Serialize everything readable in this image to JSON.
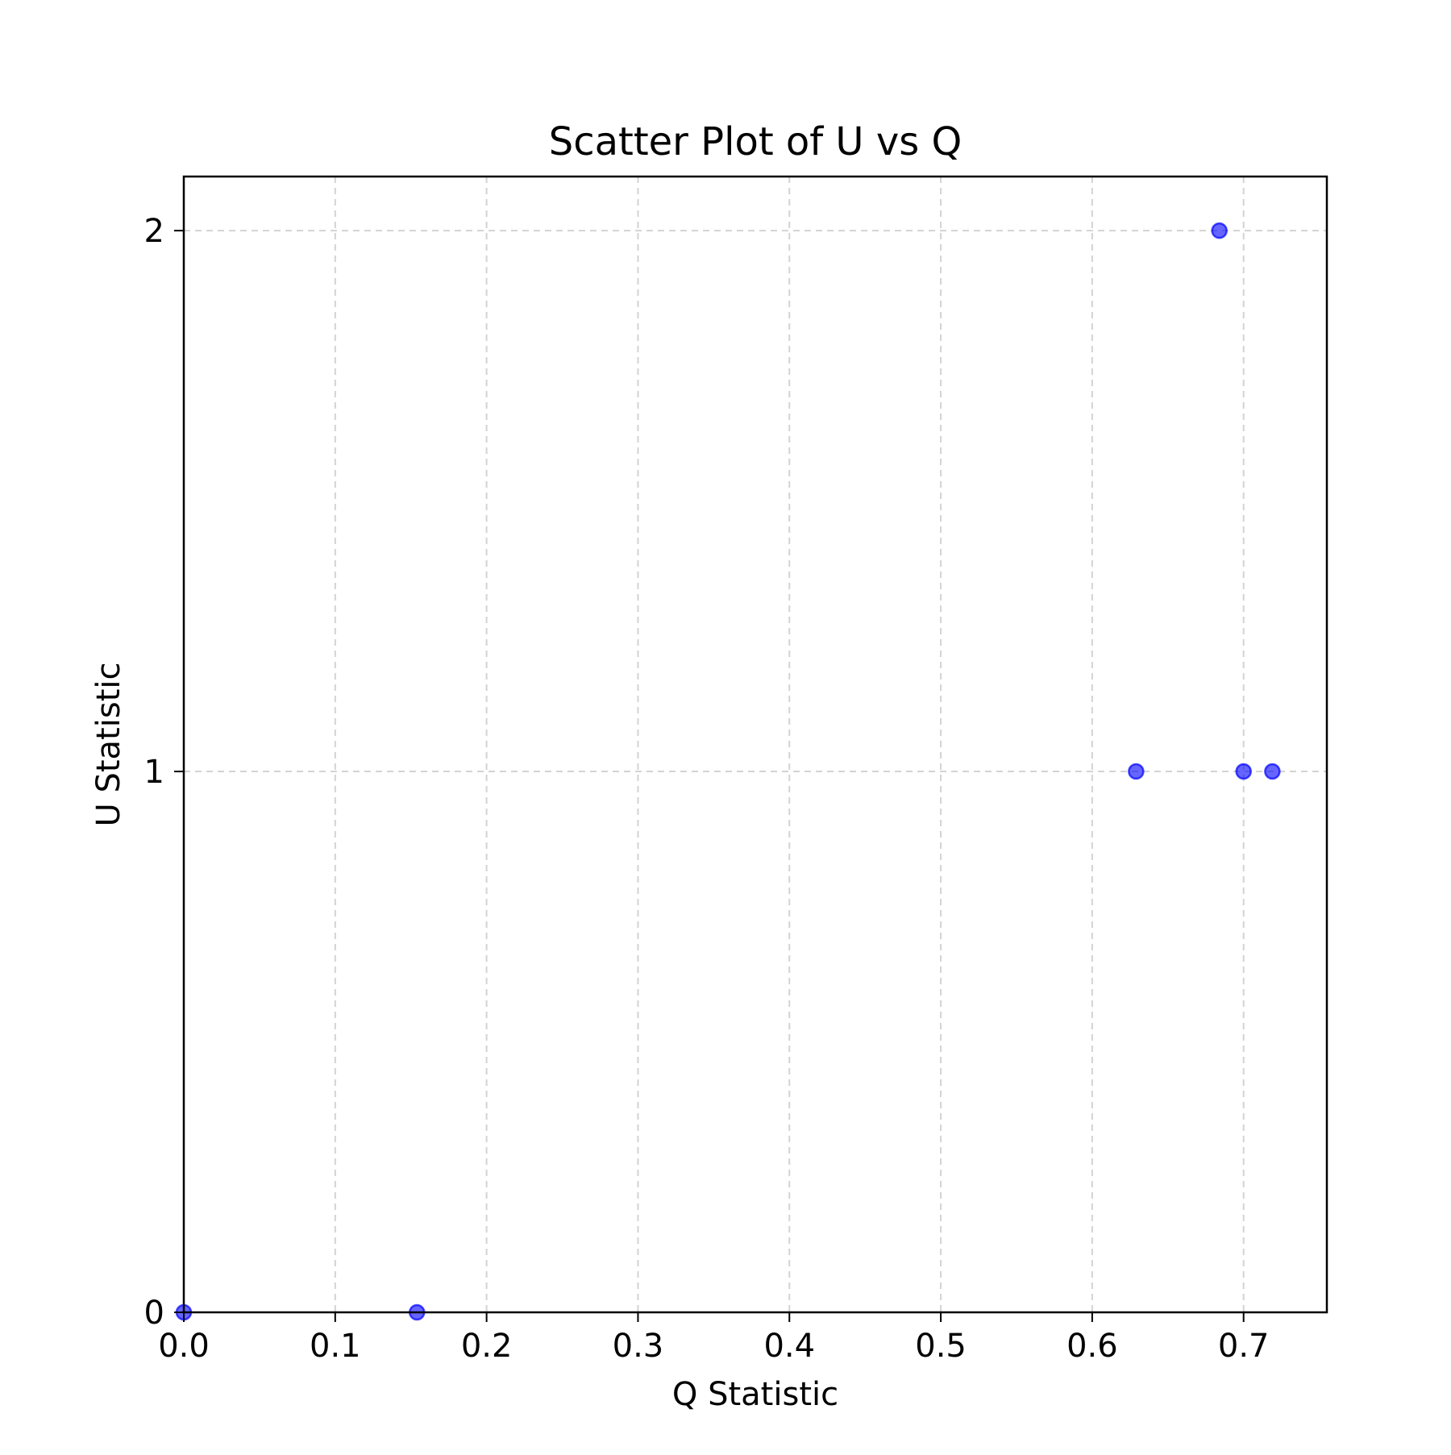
{
  "chart_data": {
    "type": "scatter",
    "title": "Scatter Plot of U vs Q",
    "xlabel": "Q Statistic",
    "ylabel": "U Statistic",
    "xlim": [
      0.0,
      0.755
    ],
    "ylim": [
      0.0,
      2.1
    ],
    "xticks": [
      0.0,
      0.1,
      0.2,
      0.3,
      0.4,
      0.5,
      0.6,
      0.7
    ],
    "xtick_labels": [
      "0.0",
      "0.1",
      "0.2",
      "0.3",
      "0.4",
      "0.5",
      "0.6",
      "0.7"
    ],
    "yticks": [
      0,
      1,
      2
    ],
    "ytick_labels": [
      "0",
      "1",
      "2"
    ],
    "grid": true,
    "grid_style": "dashed",
    "marker_color": "#0000ff",
    "grid_color": "#d3d3d3",
    "points": [
      {
        "x": 0.0,
        "y": 0
      },
      {
        "x": 0.154,
        "y": 0
      },
      {
        "x": 0.629,
        "y": 1
      },
      {
        "x": 0.684,
        "y": 2
      },
      {
        "x": 0.7,
        "y": 1
      },
      {
        "x": 0.719,
        "y": 1
      }
    ]
  }
}
